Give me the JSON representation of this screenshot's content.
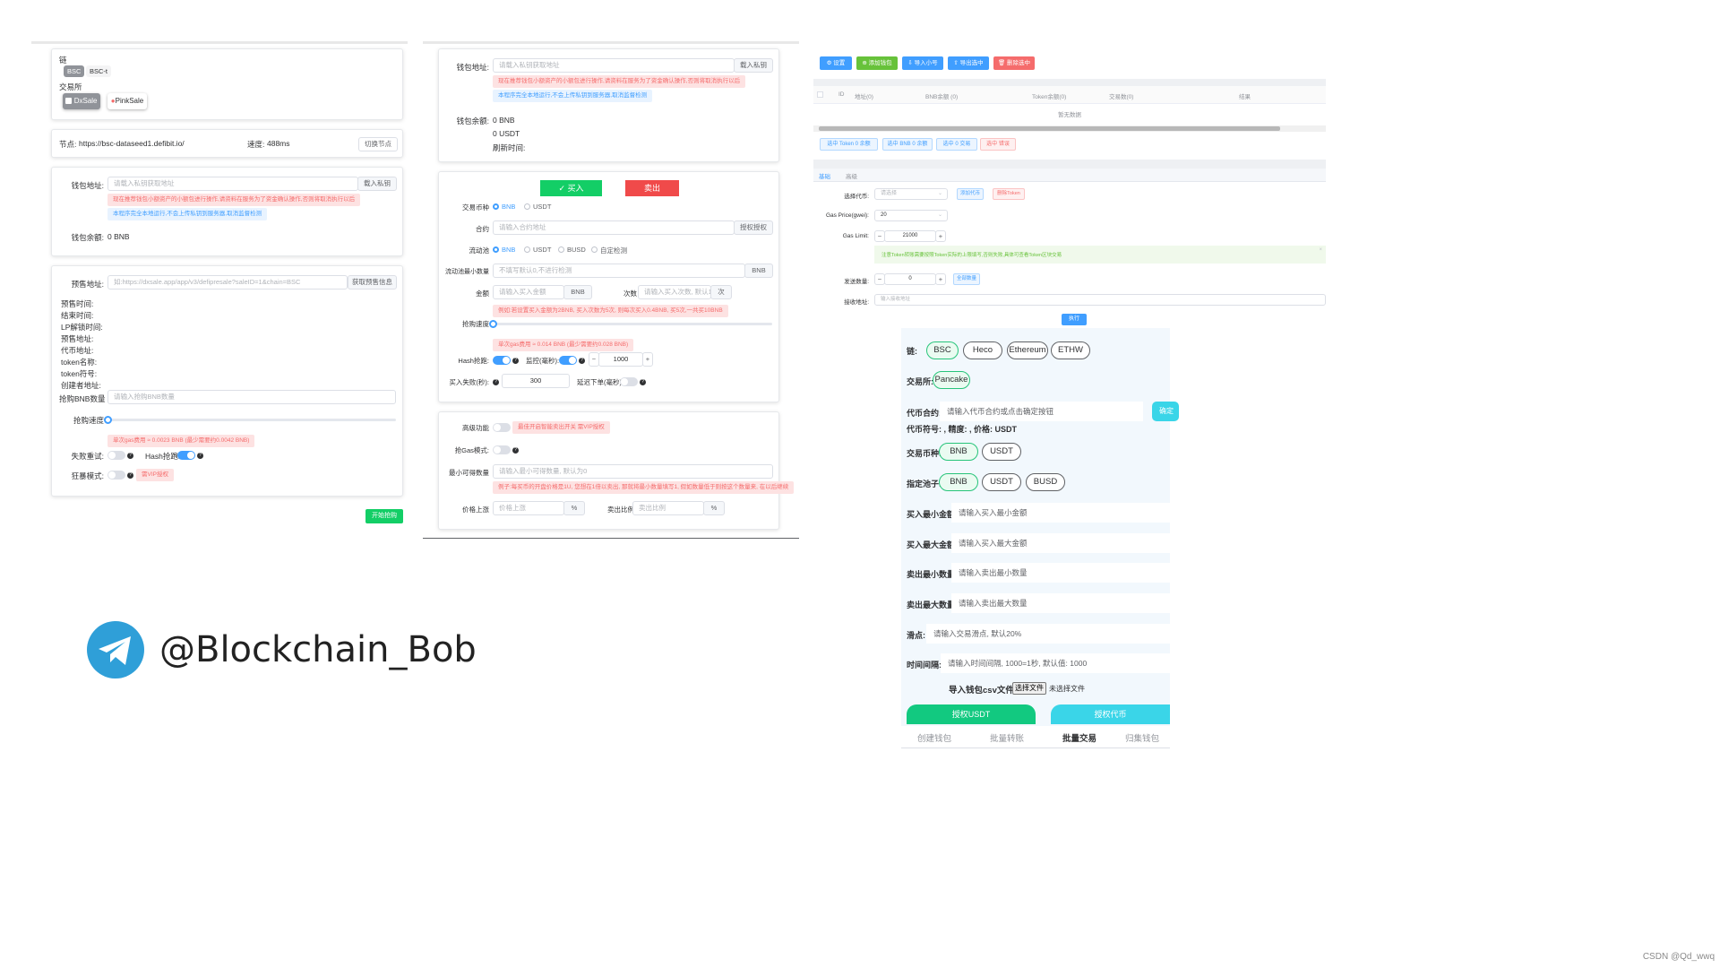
{
  "panel1": {
    "chain_label": "链",
    "chain_tags": [
      "BSC",
      "BSC-t"
    ],
    "exchange_label": "交易所",
    "exchange_buttons": [
      "DxSale",
      "PinkSale"
    ],
    "node_label": "节点:",
    "node_url": "https://bsc-dataseed1.defibit.io/",
    "speed_label": "速度:",
    "speed_value": "488ms",
    "switch_node_btn": "切换节点",
    "wallet_addr_label": "钱包地址:",
    "wallet_addr_placeholder": "请载入私钥获取地址",
    "import_key_btn": "载入私钥",
    "warn_text": "现在推荐钱包小额资产的小额包进行操作,请资料在服务为了资金确认操作,否则将取消执行以后",
    "info_text": "本程序完全本地运行,不会上传私钥到服务器,取消监督检测",
    "wallet_balance_label": "钱包余额:",
    "wallet_balance_value": "0 BNB",
    "presale_addr_label": "预售地址:",
    "presale_addr_placeholder": "如:https://dxsale.app/app/v3/defipresale?saleID=1&chain=BSC",
    "get_presale_btn": "获取预售信息",
    "info_fields": [
      "预售时间:",
      "结束时间:",
      "LP解锁时间:",
      "预售地址:",
      "代币地址:",
      "token名称:",
      "token符号:",
      "创建者地址:"
    ],
    "bnb_amount_label": "抢购BNB数量",
    "bnb_amount_placeholder": "请输入抢购BNB数量",
    "speed_slider_label": "抢购速度",
    "gas_tag": "单次gas费用 ≈ 0.0023 BNB (最少需要约0.0042 BNB)",
    "retry_label": "失败重试:",
    "hash_label": "Hash抢跑:",
    "crazy_label": "狂暴模式:",
    "vip_tag": "需VIP授权",
    "start_btn": "开始抢购"
  },
  "panel2": {
    "wallet_addr_label": "钱包地址:",
    "wallet_addr_placeholder": "请载入私钥获取地址",
    "import_key_btn": "载入私钥",
    "warn_text": "现在推荐钱包小额资产的小额包进行操作,请资料在服务为了资金确认操作,否则将取消执行以后",
    "info_text": "本程序完全本地运行,不会上传私钥到服务器,取消监督检测",
    "wallet_balance_label": "钱包余额:",
    "balance_bnb": "0 BNB",
    "balance_usdt": "0 USDT",
    "refresh_label": "刷新时间:",
    "buy_btn": "✓ 买入",
    "sell_btn": "卖出",
    "trade_coin_label": "交易币种",
    "coin_options": [
      "BNB",
      "USDT"
    ],
    "contract_label": "合约",
    "contract_placeholder": "请输入合约地址",
    "auth_btn": "授权授权",
    "pool_label": "流动池",
    "pool_options": [
      "BNB",
      "USDT",
      "BUSD",
      "自定检测"
    ],
    "min_liq_label": "流动池最小数量",
    "min_liq_placeholder": "不填写默认0,不进行检测",
    "min_liq_unit": "BNB",
    "amount_label": "金额",
    "amount_placeholder": "请输入买入金额",
    "amount_unit": "BNB",
    "times_label": "次数",
    "times_placeholder": "请输入买入次数, 默认1",
    "times_unit": "次",
    "example_tag": "例如:若设置买入金额为2BNB, 买入次数为5次, 则每次买入0.4BNB, 买5次,一共买10BNB",
    "speed_label": "抢购速度",
    "gas_tag": "单次gas费用 ≈ 0.014 BNB (最少需要约0.028 BNB)",
    "hash_label": "Hash抢跑:",
    "monitor_label": "监控(毫秒):",
    "monitor_value": "1000",
    "buy_fail_label": "买入失败(秒):",
    "buy_fail_value": "300",
    "stop_label": "延迟下单(毫秒):",
    "high_func_label": "高级功能",
    "high_func_tag": "最佳开启智能卖出开关 需VIP授权",
    "gas_mode_label": "抢Gas模式:",
    "min_sell_label": "最小可得数量",
    "min_sell_placeholder": "请输入最小可得数量, 默认为0",
    "min_sell_tag": "例子:每买币的开盘价格是1U, 您想在1倍以卖出, 那就将最小数量填写1, 假如数量低于则按这个数量来, 在以后继续",
    "price_up_label": "价格上涨",
    "price_up_placeholder": "价格上涨",
    "price_up_unit": "%",
    "sell_ratio_label": "卖出比例",
    "sell_ratio_placeholder": "卖出比例",
    "sell_ratio_unit": "%"
  },
  "panel3": {
    "toolbar": [
      {
        "label": "⚙ 设置",
        "color": "#409eff"
      },
      {
        "label": "⊕ 添加钱包",
        "color": "#67c23a"
      },
      {
        "label": "⇩ 导入小号",
        "color": "#409eff"
      },
      {
        "label": "⇧ 导出选中",
        "color": "#409eff"
      },
      {
        "label": "🗑 删除选中",
        "color": "#f56c6c"
      }
    ],
    "table_headers": [
      "",
      "ID",
      "地址(0)",
      "BNB余额 (0)",
      "Token余额(0)",
      "交易数(0)",
      "结果"
    ],
    "empty_text": "暂无数据",
    "select_buttons": [
      {
        "label": "选中 Token 0 余额",
        "type": "blue"
      },
      {
        "label": "选中 BNB 0 余额",
        "type": "blue"
      },
      {
        "label": "选中 0 交易",
        "type": "blue"
      },
      {
        "label": "选中 错误",
        "type": "red"
      }
    ],
    "tabs": [
      "基础",
      "高级"
    ],
    "select_coin_label": "选择代币:",
    "select_coin_placeholder": "请选择",
    "add_coin_btn": "添加代币",
    "delete_token_btn": "删除Token",
    "gas_price_label": "Gas Price(gwei):",
    "gas_price_value": "20",
    "gas_limit_label": "Gas Limit:",
    "gas_limit_value": "21000",
    "notice_text": "注意Token转账需要按照Token实际的上限填写,否则失败,具体可查看Token区块交易",
    "send_amount_label": "发送数量:",
    "send_amount_value": "0",
    "all_amount_btn": "全部数量",
    "receive_label": "接收地址:",
    "receive_placeholder": "输入接收地址",
    "execute_btn": "执行"
  },
  "panel4": {
    "chain_label": "链:",
    "chains": [
      "BSC",
      "Heco",
      "Ethereum",
      "ETHW"
    ],
    "exchange_label": "交易所:",
    "exchanges": [
      "Pancake"
    ],
    "contract_label": "代币合约:",
    "contract_placeholder": "请输入代币合约或点击确定按钮",
    "confirm_btn": "确定",
    "symbol_line": "代币符号: ,  精度: ,  价格:  USDT",
    "coin_label": "交易币种:",
    "coins": [
      "BNB",
      "USDT"
    ],
    "pool_label": "指定池子:",
    "pools": [
      "BNB",
      "USDT",
      "BUSD"
    ],
    "buy_min_label": "买入最小金额:",
    "buy_min_placeholder": "请输入买入最小金额",
    "buy_max_label": "买入最大金额:",
    "buy_max_placeholder": "请输入买入最大金额",
    "sell_min_label": "卖出最小数量:",
    "sell_min_placeholder": "请输入卖出最小数量",
    "sell_max_label": "卖出最大数量:",
    "sell_max_placeholder": "请输入卖出最大数量",
    "slippage_label": "滑点:",
    "slippage_placeholder": "请输入交易滑点, 默认20%",
    "interval_label": "时间间隔:",
    "interval_placeholder": "请输入时间间隔, 1000=1秒, 默认值: 1000",
    "import_label": "导入钱包csv文件:",
    "choose_file_btn": "选择文件",
    "no_file_text": "未选择文件",
    "auth_usdt_btn": "授权USDT",
    "auth_coin_btn": "授权代币",
    "bottom_tabs": [
      "创建钱包",
      "批量转账",
      "批量交易",
      "归集钱包"
    ]
  },
  "telegram_handle": "@Blockchain_Bob",
  "watermark": "CSDN @Qd_wwq",
  "colors": {
    "primary": "#409eff",
    "success_green": "#13ce66",
    "danger_red": "#f56c6c",
    "telegram_blue": "#2f9fd8",
    "panel4_bg": "#f2f8fd",
    "auth_usdt_green": "#12c980",
    "auth_coin_cyan": "#3ad5e8"
  }
}
